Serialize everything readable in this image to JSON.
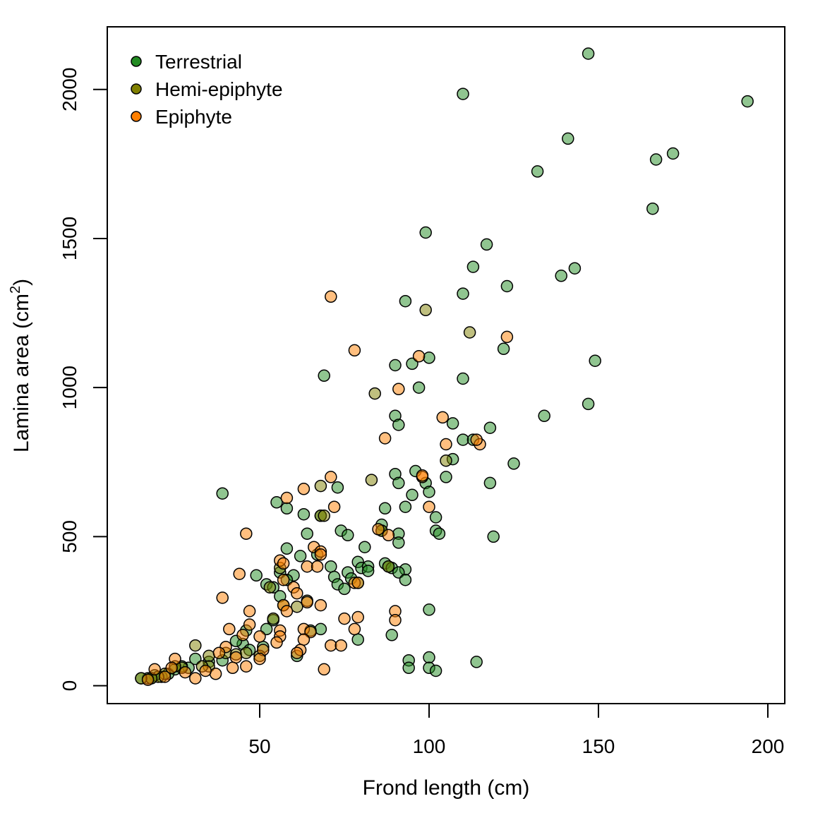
{
  "chart_data": {
    "type": "scatter",
    "xlabel": "Frond length  (cm)",
    "ylabel_main": "Lamina area  (cm",
    "ylabel_sup": "2",
    "ylabel_close": ")",
    "xlim": [
      5,
      205
    ],
    "ylim": [
      -60,
      2210
    ],
    "x_ticks": [
      50,
      100,
      150,
      200
    ],
    "y_ticks": [
      0,
      500,
      1000,
      1500,
      2000
    ],
    "legend_position": "top-left",
    "series": [
      {
        "name": "Terrestrial",
        "color": "#228B22",
        "points": [
          [
            147,
            2120
          ],
          [
            194,
            1960
          ],
          [
            110,
            1985
          ],
          [
            141,
            1835
          ],
          [
            132,
            1725
          ],
          [
            167,
            1765
          ],
          [
            172,
            1785
          ],
          [
            166,
            1600
          ],
          [
            99,
            1520
          ],
          [
            117,
            1480
          ],
          [
            113,
            1405
          ],
          [
            139,
            1375
          ],
          [
            143,
            1400
          ],
          [
            110,
            1315
          ],
          [
            123,
            1340
          ],
          [
            93,
            1290
          ],
          [
            122,
            1130
          ],
          [
            100,
            1100
          ],
          [
            95,
            1080
          ],
          [
            90,
            1075
          ],
          [
            149,
            1090
          ],
          [
            69,
            1040
          ],
          [
            110,
            1030
          ],
          [
            97,
            1000
          ],
          [
            147,
            945
          ],
          [
            134,
            905
          ],
          [
            90,
            905
          ],
          [
            91,
            875
          ],
          [
            107,
            880
          ],
          [
            118,
            865
          ],
          [
            110,
            825
          ],
          [
            113,
            825
          ],
          [
            125,
            745
          ],
          [
            107,
            760
          ],
          [
            90,
            710
          ],
          [
            96,
            720
          ],
          [
            91,
            680
          ],
          [
            99,
            680
          ],
          [
            105,
            700
          ],
          [
            118,
            680
          ],
          [
            39,
            645
          ],
          [
            73,
            665
          ],
          [
            95,
            640
          ],
          [
            100,
            650
          ],
          [
            55,
            615
          ],
          [
            58,
            595
          ],
          [
            63,
            575
          ],
          [
            68,
            570
          ],
          [
            87,
            595
          ],
          [
            93,
            600
          ],
          [
            102,
            565
          ],
          [
            102,
            520
          ],
          [
            103,
            510
          ],
          [
            86,
            540
          ],
          [
            91,
            510
          ],
          [
            119,
            500
          ],
          [
            64,
            510
          ],
          [
            74,
            520
          ],
          [
            76,
            505
          ],
          [
            86,
            520
          ],
          [
            91,
            480
          ],
          [
            58,
            460
          ],
          [
            81,
            465
          ],
          [
            62,
            435
          ],
          [
            67,
            440
          ],
          [
            79,
            415
          ],
          [
            87,
            410
          ],
          [
            88,
            400
          ],
          [
            93,
            390
          ],
          [
            71,
            400
          ],
          [
            76,
            380
          ],
          [
            80,
            395
          ],
          [
            82,
            400
          ],
          [
            89,
            395
          ],
          [
            91,
            380
          ],
          [
            49,
            370
          ],
          [
            56,
            380
          ],
          [
            60,
            370
          ],
          [
            72,
            365
          ],
          [
            77,
            360
          ],
          [
            82,
            385
          ],
          [
            93,
            355
          ],
          [
            52,
            340
          ],
          [
            58,
            355
          ],
          [
            73,
            340
          ],
          [
            75,
            325
          ],
          [
            79,
            345
          ],
          [
            54,
            330
          ],
          [
            56,
            300
          ],
          [
            46,
            185
          ],
          [
            52,
            190
          ],
          [
            54,
            220
          ],
          [
            100,
            255
          ],
          [
            68,
            190
          ],
          [
            65,
            185
          ],
          [
            79,
            155
          ],
          [
            89,
            170
          ],
          [
            61,
            100
          ],
          [
            94,
            85
          ],
          [
            94,
            60
          ],
          [
            100,
            95
          ],
          [
            100,
            60
          ],
          [
            102,
            50
          ],
          [
            114,
            80
          ],
          [
            45,
            140
          ],
          [
            51,
            130
          ],
          [
            47,
            120
          ],
          [
            43,
            150
          ],
          [
            39,
            85
          ],
          [
            35,
            80
          ],
          [
            31,
            90
          ],
          [
            29,
            60
          ],
          [
            27,
            65
          ],
          [
            25,
            55
          ],
          [
            23,
            40
          ],
          [
            21,
            30
          ],
          [
            19,
            35
          ],
          [
            18,
            25
          ],
          [
            17,
            25
          ],
          [
            15,
            25
          ]
        ]
      },
      {
        "name": "Hemi-epiphyte",
        "color": "#808000",
        "points": [
          [
            99,
            1260
          ],
          [
            112,
            1185
          ],
          [
            84,
            980
          ],
          [
            105,
            755
          ],
          [
            68,
            670
          ],
          [
            83,
            690
          ],
          [
            68,
            570
          ],
          [
            69,
            570
          ],
          [
            86,
            520
          ],
          [
            88,
            400
          ],
          [
            64,
            285
          ],
          [
            56,
            395
          ],
          [
            57,
            270
          ],
          [
            61,
            265
          ],
          [
            53,
            330
          ],
          [
            54,
            225
          ],
          [
            31,
            135
          ],
          [
            35,
            100
          ],
          [
            40,
            110
          ],
          [
            43,
            105
          ],
          [
            46,
            110
          ],
          [
            50,
            100
          ],
          [
            35,
            65
          ],
          [
            33,
            65
          ],
          [
            27,
            60
          ],
          [
            25,
            65
          ],
          [
            22,
            40
          ],
          [
            20,
            30
          ],
          [
            18,
            25
          ],
          [
            15,
            25
          ]
        ]
      },
      {
        "name": "Epiphyte",
        "color": "#FF7F00",
        "points": [
          [
            71,
            1305
          ],
          [
            78,
            1125
          ],
          [
            97,
            1105
          ],
          [
            123,
            1170
          ],
          [
            91,
            995
          ],
          [
            104,
            900
          ],
          [
            87,
            830
          ],
          [
            105,
            810
          ],
          [
            115,
            810
          ],
          [
            114,
            825
          ],
          [
            98,
            700
          ],
          [
            98,
            705
          ],
          [
            71,
            700
          ],
          [
            63,
            660
          ],
          [
            58,
            630
          ],
          [
            100,
            600
          ],
          [
            72,
            600
          ],
          [
            85,
            525
          ],
          [
            88,
            505
          ],
          [
            46,
            510
          ],
          [
            66,
            465
          ],
          [
            68,
            450
          ],
          [
            68,
            440
          ],
          [
            64,
            400
          ],
          [
            67,
            400
          ],
          [
            56,
            420
          ],
          [
            57,
            410
          ],
          [
            44,
            375
          ],
          [
            57,
            355
          ],
          [
            60,
            330
          ],
          [
            61,
            310
          ],
          [
            78,
            345
          ],
          [
            79,
            345
          ],
          [
            39,
            295
          ],
          [
            57,
            270
          ],
          [
            58,
            250
          ],
          [
            68,
            270
          ],
          [
            64,
            280
          ],
          [
            47,
            250
          ],
          [
            90,
            250
          ],
          [
            90,
            220
          ],
          [
            79,
            230
          ],
          [
            75,
            225
          ],
          [
            47,
            205
          ],
          [
            41,
            190
          ],
          [
            56,
            185
          ],
          [
            63,
            190
          ],
          [
            78,
            190
          ],
          [
            65,
            180
          ],
          [
            56,
            165
          ],
          [
            50,
            165
          ],
          [
            45,
            170
          ],
          [
            63,
            155
          ],
          [
            71,
            135
          ],
          [
            74,
            135
          ],
          [
            62,
            120
          ],
          [
            61,
            110
          ],
          [
            51,
            120
          ],
          [
            55,
            145
          ],
          [
            40,
            130
          ],
          [
            38,
            110
          ],
          [
            43,
            95
          ],
          [
            42,
            60
          ],
          [
            46,
            65
          ],
          [
            50,
            90
          ],
          [
            37,
            40
          ],
          [
            34,
            50
          ],
          [
            31,
            25
          ],
          [
            28,
            45
          ],
          [
            25,
            90
          ],
          [
            24,
            60
          ],
          [
            19,
            55
          ],
          [
            22,
            30
          ],
          [
            17,
            20
          ],
          [
            69,
            55
          ]
        ]
      }
    ]
  }
}
